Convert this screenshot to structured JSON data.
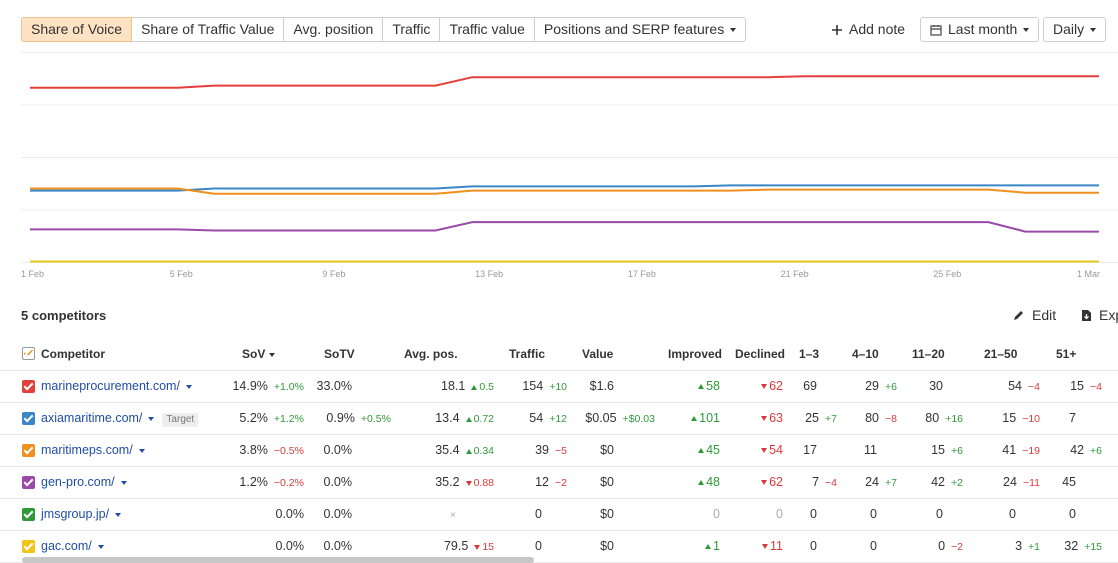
{
  "toolbar": {
    "tabs": [
      "Share of Voice",
      "Share of Traffic Value",
      "Avg. position",
      "Traffic",
      "Traffic value",
      "Positions and SERP features"
    ],
    "add_note": "Add note",
    "period": "Last month",
    "granularity": "Daily"
  },
  "chart_data": {
    "type": "line",
    "x_ticks": [
      "1 Feb",
      "5 Feb",
      "9 Feb",
      "13 Feb",
      "17 Feb",
      "21 Feb",
      "25 Feb",
      "1 Mar"
    ],
    "series": [
      {
        "color": "#e3403a",
        "values": [
          16.6,
          16.6,
          16.6,
          16.6,
          16.6,
          16.8,
          16.8,
          16.8,
          16.8,
          16.8,
          16.8,
          16.8,
          17.6,
          17.6,
          17.6,
          17.6,
          17.6,
          17.6,
          17.6,
          17.6,
          17.6,
          17.7,
          17.7,
          17.7,
          17.7,
          17.7,
          17.7,
          17.7,
          17.7,
          17.7
        ]
      },
      {
        "color": "#3b86c7",
        "values": [
          6.8,
          6.8,
          6.8,
          6.8,
          6.8,
          7.0,
          7.0,
          7.0,
          7.0,
          7.0,
          7.0,
          7.0,
          7.2,
          7.2,
          7.2,
          7.2,
          7.2,
          7.2,
          7.2,
          7.3,
          7.3,
          7.3,
          7.3,
          7.3,
          7.3,
          7.3,
          7.3,
          7.3,
          7.3,
          7.3
        ]
      },
      {
        "color": "#f0901e",
        "values": [
          7.0,
          7.0,
          7.0,
          7.0,
          7.0,
          6.5,
          6.5,
          6.5,
          6.5,
          6.5,
          6.5,
          6.5,
          6.8,
          6.8,
          6.8,
          6.8,
          6.8,
          6.8,
          6.8,
          6.8,
          6.9,
          6.9,
          6.9,
          6.9,
          6.9,
          6.9,
          6.9,
          6.6,
          6.6,
          6.6
        ]
      },
      {
        "color": "#9a4aa8",
        "values": [
          3.1,
          3.1,
          3.1,
          3.1,
          3.1,
          3.0,
          3.0,
          3.0,
          3.0,
          3.0,
          3.0,
          3.0,
          3.8,
          3.8,
          3.8,
          3.8,
          3.8,
          3.8,
          3.8,
          3.8,
          3.8,
          3.8,
          3.8,
          3.8,
          3.8,
          3.8,
          3.8,
          2.9,
          2.9,
          2.9
        ]
      },
      {
        "color": "#e6c81c",
        "values": [
          0.05,
          0.05,
          0.05,
          0.05,
          0.05,
          0.05,
          0.05,
          0.05,
          0.05,
          0.05,
          0.05,
          0.05,
          0.05,
          0.05,
          0.05,
          0.05,
          0.05,
          0.05,
          0.05,
          0.05,
          0.05,
          0.05,
          0.05,
          0.05,
          0.05,
          0.05,
          0.05,
          0.05,
          0.05,
          0.05
        ]
      }
    ],
    "ylim": [
      0,
      20
    ],
    "grid": true
  },
  "section": {
    "title": "5 competitors",
    "edit": "Edit",
    "export": "Exp"
  },
  "columns": [
    "Competitor",
    "SoV",
    "SoTV",
    "Avg. pos.",
    "Traffic",
    "Value",
    "Improved",
    "Declined",
    "1–3",
    "4–10",
    "11–20",
    "21–50",
    "51+"
  ],
  "target_badge": "Target",
  "rows": [
    {
      "color": "#e3403a",
      "domain": "marineprocurement.com/",
      "target": false,
      "sov": "14.9%",
      "sov_d": "+1.0%",
      "sov_dir": "pos",
      "sotv": "33.0%",
      "sotv_d": "",
      "avgpos": "18.1",
      "avgpos_d": "0.5",
      "avgpos_dir": "up",
      "traffic": "154",
      "traffic_d": "+10",
      "traffic_dir": "pos",
      "value": "$1.6",
      "value_d": "",
      "improved": "58",
      "declined": "62",
      "c13": "69",
      "c13_d": "",
      "c13_dir": "",
      "c410": "29",
      "c410_d": "+6",
      "c410_dir": "pos",
      "c1120": "30",
      "c1120_d": "",
      "c1120_dir": "",
      "c2150": "54",
      "c2150_d": "−4",
      "c2150_dir": "neg",
      "c51": "15",
      "c51_d": "−4",
      "c51_dir": "neg"
    },
    {
      "color": "#3b86c7",
      "domain": "axiamaritime.com/",
      "target": true,
      "sov": "5.2%",
      "sov_d": "+1.2%",
      "sov_dir": "pos",
      "sotv": "0.9%",
      "sotv_d": "+0.5%",
      "avgpos": "13.4",
      "avgpos_d": "0.72",
      "avgpos_dir": "up",
      "traffic": "54",
      "traffic_d": "+12",
      "traffic_dir": "pos",
      "value": "$0.05",
      "value_d": "+$0.03",
      "improved": "101",
      "declined": "63",
      "c13": "25",
      "c13_d": "+7",
      "c13_dir": "pos",
      "c410": "80",
      "c410_d": "−8",
      "c410_dir": "neg",
      "c1120": "80",
      "c1120_d": "+16",
      "c1120_dir": "pos",
      "c2150": "15",
      "c2150_d": "−10",
      "c2150_dir": "neg",
      "c51": "7",
      "c51_d": "",
      "c51_dir": ""
    },
    {
      "color": "#f0901e",
      "domain": "maritimeps.com/",
      "target": false,
      "sov": "3.8%",
      "sov_d": "−0.5%",
      "sov_dir": "neg",
      "sotv": "0.0%",
      "sotv_d": "",
      "avgpos": "35.4",
      "avgpos_d": "0.34",
      "avgpos_dir": "up",
      "traffic": "39",
      "traffic_d": "−5",
      "traffic_dir": "neg",
      "value": "$0",
      "value_d": "",
      "improved": "45",
      "declined": "54",
      "c13": "17",
      "c13_d": "",
      "c13_dir": "",
      "c410": "11",
      "c410_d": "",
      "c410_dir": "",
      "c1120": "15",
      "c1120_d": "+6",
      "c1120_dir": "pos",
      "c2150": "41",
      "c2150_d": "−19",
      "c2150_dir": "neg",
      "c51": "42",
      "c51_d": "+6",
      "c51_dir": "pos"
    },
    {
      "color": "#9a4aa8",
      "domain": "gen-pro.com/",
      "target": false,
      "sov": "1.2%",
      "sov_d": "−0.2%",
      "sov_dir": "neg",
      "sotv": "0.0%",
      "sotv_d": "",
      "avgpos": "35.2",
      "avgpos_d": "0.88",
      "avgpos_dir": "down",
      "traffic": "12",
      "traffic_d": "−2",
      "traffic_dir": "neg",
      "value": "$0",
      "value_d": "",
      "improved": "48",
      "declined": "62",
      "c13": "7",
      "c13_d": "−4",
      "c13_dir": "neg",
      "c410": "24",
      "c410_d": "+7",
      "c410_dir": "pos",
      "c1120": "42",
      "c1120_d": "+2",
      "c1120_dir": "pos",
      "c2150": "24",
      "c2150_d": "−11",
      "c2150_dir": "neg",
      "c51": "45",
      "c51_d": "",
      "c51_dir": ""
    },
    {
      "color": "#2e9a3a",
      "domain": "jmsgroup.jp/",
      "target": false,
      "sov": "0.0%",
      "sov_d": "",
      "sov_dir": "",
      "sotv": "0.0%",
      "sotv_d": "",
      "avgpos": "×",
      "avgpos_d": "",
      "avgpos_dir": "muted",
      "traffic": "0",
      "traffic_d": "",
      "traffic_dir": "",
      "value": "$0",
      "value_d": "",
      "improved": "0",
      "declined": "0",
      "c13": "0",
      "c13_d": "",
      "c13_dir": "",
      "c410": "0",
      "c410_d": "",
      "c410_dir": "",
      "c1120": "0",
      "c1120_d": "",
      "c1120_dir": "",
      "c2150": "0",
      "c2150_d": "",
      "c2150_dir": "",
      "c51": "0",
      "c51_d": "",
      "c51_dir": ""
    },
    {
      "color": "#f2c418",
      "domain": "gac.com/",
      "target": false,
      "sov": "0.0%",
      "sov_d": "",
      "sov_dir": "",
      "sotv": "0.0%",
      "sotv_d": "",
      "avgpos": "79.5",
      "avgpos_d": "15",
      "avgpos_dir": "down",
      "traffic": "0",
      "traffic_d": "",
      "traffic_dir": "",
      "value": "$0",
      "value_d": "",
      "improved": "1",
      "declined": "11",
      "c13": "0",
      "c13_d": "",
      "c13_dir": "",
      "c410": "0",
      "c410_d": "",
      "c410_dir": "",
      "c1120": "0",
      "c1120_d": "−2",
      "c1120_dir": "neg",
      "c2150": "3",
      "c2150_d": "+1",
      "c2150_dir": "pos",
      "c51": "32",
      "c51_d": "+15",
      "c51_dir": "pos"
    }
  ]
}
